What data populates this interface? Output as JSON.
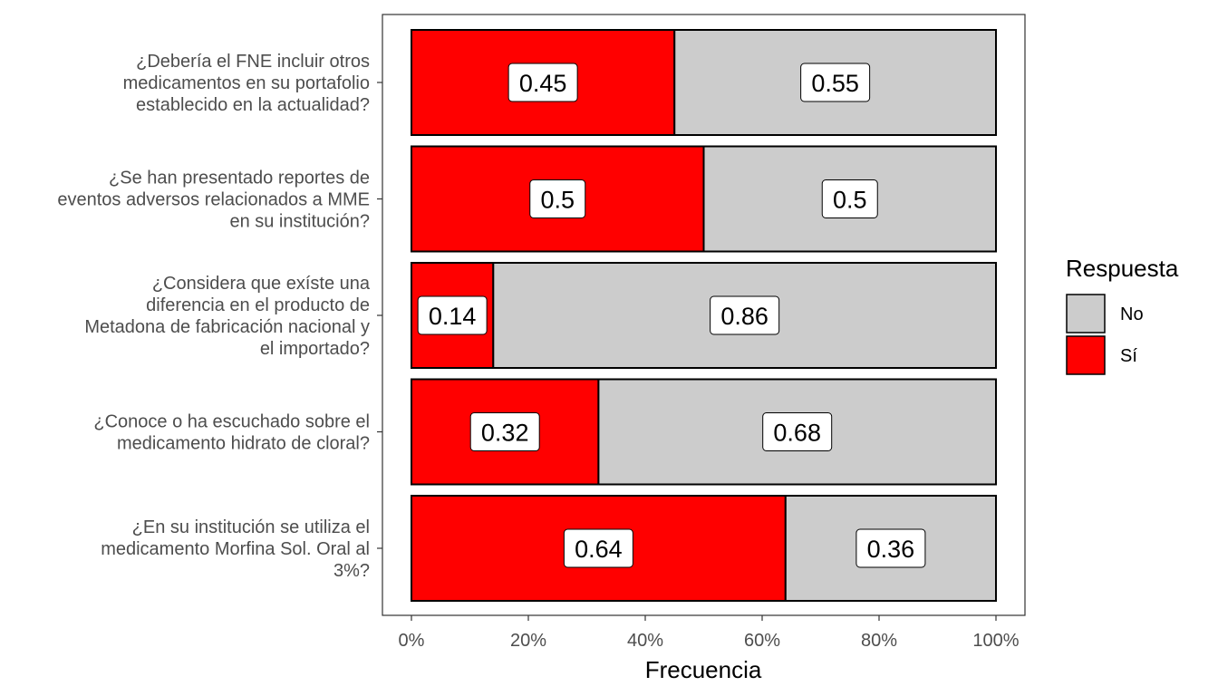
{
  "chart_data": {
    "type": "bar",
    "orientation": "horizontal",
    "stacked": "percent",
    "categories": [
      [
        "¿Debería el FNE incluir otros",
        "medicamentos en su portafolio",
        "establecido en la actualidad?"
      ],
      [
        "¿Se han presentado reportes de",
        "eventos adversos relacionados a MME",
        "en su institución?"
      ],
      [
        "¿Considera que exíste una",
        "diferencia en el producto de",
        "Metadona de fabricación nacional y",
        "el importado?"
      ],
      [
        "¿Conoce o ha escuchado sobre el",
        "medicamento hidrato de cloral?"
      ],
      [
        "¿En su institución se utiliza el",
        "medicamento Morfina Sol. Oral al",
        "3%?"
      ]
    ],
    "series": [
      {
        "name": "Sí",
        "color": "#ff0000",
        "values": [
          0.45,
          0.5,
          0.14,
          0.32,
          0.64
        ],
        "labels": [
          "0.45",
          "0.5",
          "0.14",
          "0.32",
          "0.64"
        ]
      },
      {
        "name": "No",
        "color": "#cccccc",
        "values": [
          0.55,
          0.5,
          0.86,
          0.68,
          0.36
        ],
        "labels": [
          "0.55",
          "0.5",
          "0.86",
          "0.68",
          "0.36"
        ]
      }
    ],
    "xlabel": "Frecuencia",
    "ylabel": "",
    "xlim": [
      0,
      1
    ],
    "xticks": [
      0,
      0.2,
      0.4,
      0.6,
      0.8,
      1
    ],
    "xtick_labels": [
      "0%",
      "20%",
      "40%",
      "60%",
      "80%",
      "100%"
    ],
    "legend": {
      "title": "Respuesta",
      "position": "right",
      "items": [
        {
          "name": "No",
          "color": "#cccccc"
        },
        {
          "name": "Sí",
          "color": "#ff0000"
        }
      ]
    },
    "grid": false
  }
}
